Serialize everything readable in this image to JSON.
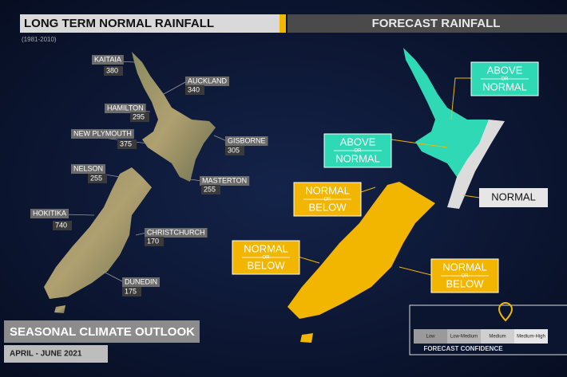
{
  "left_panel": {
    "title": "LONG TERM NORMAL RAINFALL",
    "period": "(1981-2010)",
    "locations": [
      {
        "name": "KAITAIA",
        "value": "380"
      },
      {
        "name": "AUCKLAND",
        "value": "340"
      },
      {
        "name": "HAMILTON",
        "value": "295"
      },
      {
        "name": "NEW PLYMOUTH",
        "value": "375"
      },
      {
        "name": "GISBORNE",
        "value": "305"
      },
      {
        "name": "NELSON",
        "value": "255"
      },
      {
        "name": "MASTERTON",
        "value": "255"
      },
      {
        "name": "HOKITIKA",
        "value": "740"
      },
      {
        "name": "CHRISTCHURCH",
        "value": "170"
      },
      {
        "name": "DUNEDIN",
        "value": "175"
      }
    ]
  },
  "right_panel": {
    "title": "FORECAST RAINFALL",
    "regions": [
      {
        "top": "ABOVE",
        "mid": "OR",
        "bottom": "NORMAL"
      },
      {
        "top": "ABOVE",
        "mid": "OR",
        "bottom": "NORMAL"
      },
      {
        "top": "NORMAL",
        "mid": "OR",
        "bottom": "BELOW"
      },
      {
        "top": "NORMAL",
        "mid": "OR",
        "bottom": "BELOW"
      },
      {
        "top": "NORMAL",
        "mid": "OR",
        "bottom": "BELOW"
      }
    ],
    "normal_label": "NORMAL"
  },
  "legend": {
    "title": "FORECAST CONFIDENCE",
    "levels": [
      "Low",
      "Low-Medium",
      "Medium",
      "Medium-High"
    ]
  },
  "footer": {
    "title": "SEASONAL CLIMATE OUTLOOK",
    "period": "APRIL - JUNE 2021"
  }
}
